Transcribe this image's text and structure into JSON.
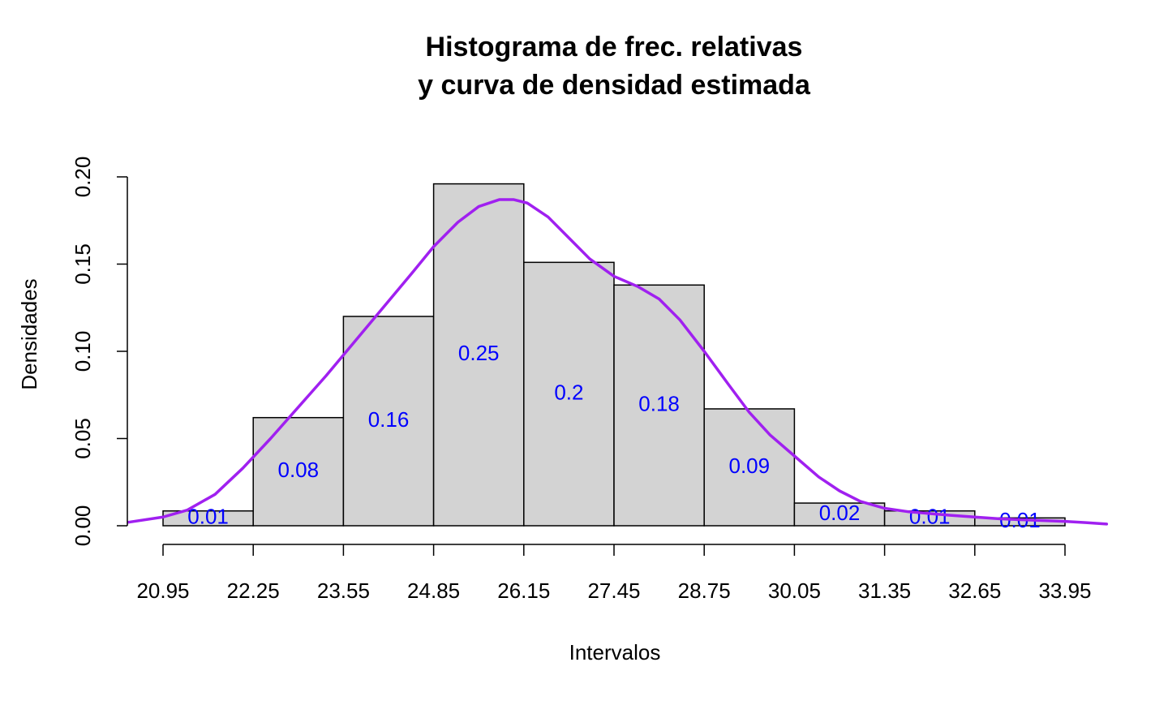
{
  "chart_data": {
    "type": "bar",
    "title": [
      "Histograma de frec. relativas",
      "y curva de densidad estimada"
    ],
    "xlabel": "Intervalos",
    "ylabel": "Densidades",
    "x_ticks": [
      "20.95",
      "22.25",
      "23.55",
      "24.85",
      "26.15",
      "27.45",
      "28.75",
      "30.05",
      "31.35",
      "32.65",
      "33.95"
    ],
    "y_ticks": [
      "0.00",
      "0.05",
      "0.10",
      "0.15",
      "0.20"
    ],
    "xlim": [
      20.45,
      34.55
    ],
    "ylim": [
      0,
      0.2
    ],
    "breaks": [
      20.95,
      22.25,
      23.55,
      24.85,
      26.15,
      27.45,
      28.75,
      30.05,
      31.35,
      32.65,
      33.95
    ],
    "values": [
      0.0085,
      0.062,
      0.12,
      0.196,
      0.151,
      0.138,
      0.067,
      0.013,
      0.0085,
      0.0045
    ],
    "bar_labels": [
      "0.01",
      "0.08",
      "0.16",
      "0.25",
      "0.2",
      "0.18",
      "0.09",
      "0.02",
      "0.01",
      "0.01"
    ],
    "bar_color": "#d3d3d3",
    "label_color": "#0000ff",
    "density_curve": {
      "color": "#a020f0",
      "x": [
        20.45,
        20.95,
        21.3,
        21.7,
        22.1,
        22.5,
        22.9,
        23.3,
        23.7,
        24.1,
        24.5,
        24.85,
        25.2,
        25.5,
        25.8,
        26.0,
        26.2,
        26.5,
        26.8,
        27.1,
        27.45,
        27.8,
        28.1,
        28.4,
        28.75,
        29.1,
        29.4,
        29.7,
        30.05,
        30.4,
        30.7,
        31.0,
        31.35,
        31.7,
        32.0,
        32.3,
        32.65,
        33.0,
        33.3,
        33.6,
        33.95,
        34.25,
        34.55
      ],
      "y": [
        0.002,
        0.005,
        0.009,
        0.018,
        0.033,
        0.05,
        0.068,
        0.086,
        0.105,
        0.124,
        0.143,
        0.16,
        0.174,
        0.183,
        0.187,
        0.187,
        0.185,
        0.177,
        0.165,
        0.153,
        0.143,
        0.137,
        0.13,
        0.118,
        0.1,
        0.081,
        0.065,
        0.052,
        0.04,
        0.028,
        0.02,
        0.014,
        0.01,
        0.008,
        0.007,
        0.006,
        0.005,
        0.004,
        0.0035,
        0.003,
        0.0025,
        0.0018,
        0.001
      ]
    }
  }
}
